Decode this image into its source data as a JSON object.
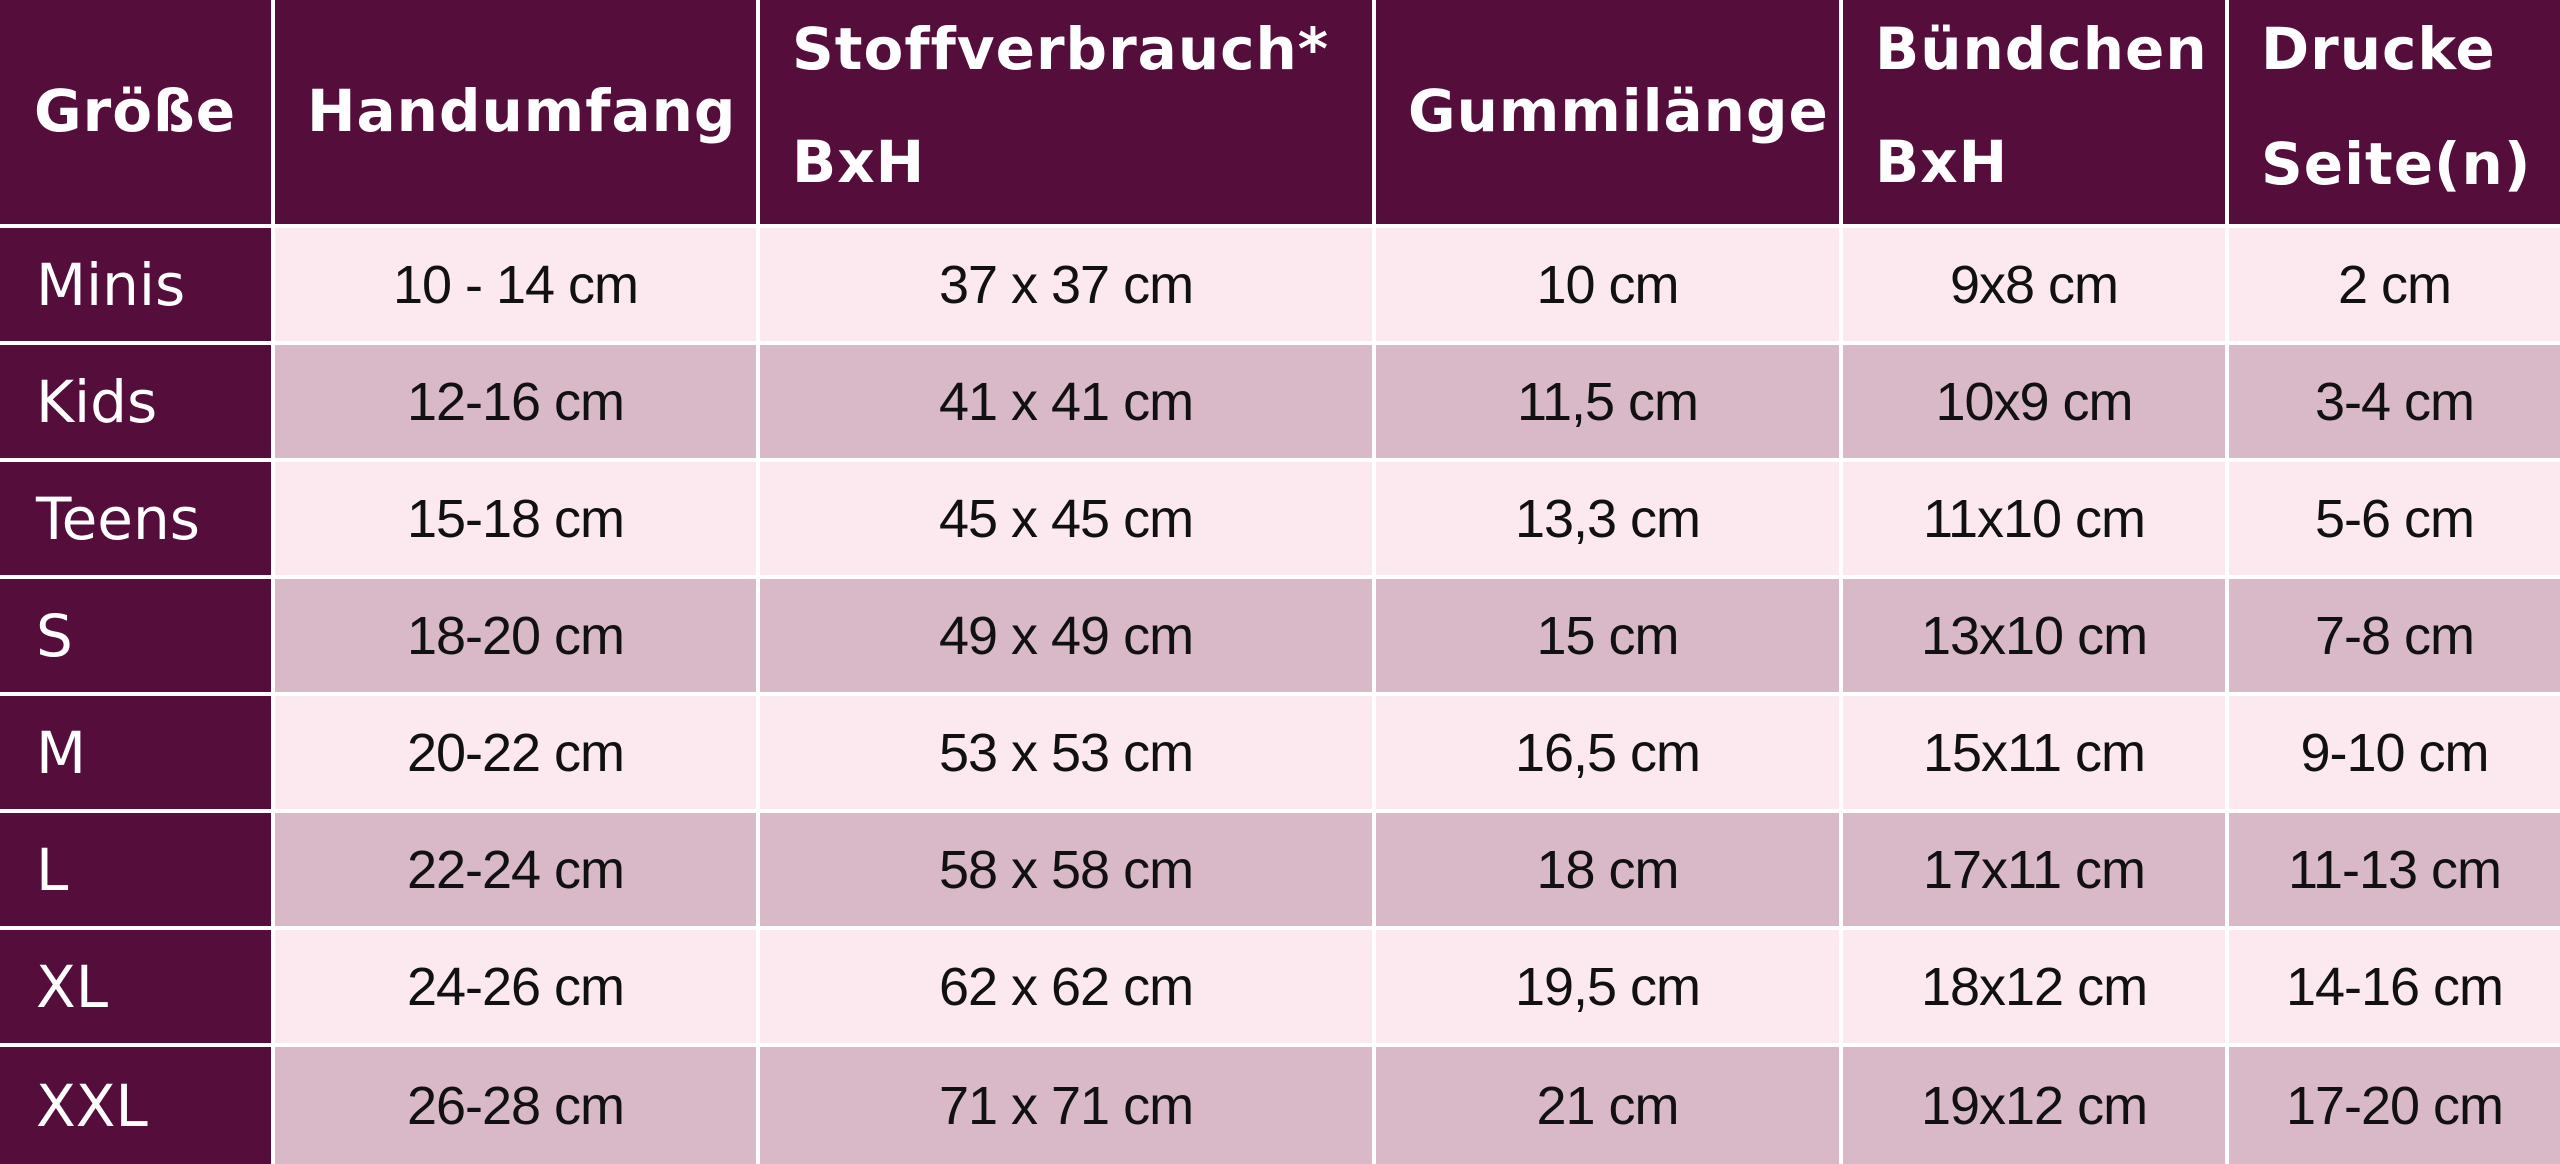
{
  "table": {
    "headers": [
      [
        "Größe"
      ],
      [
        "Handumfang"
      ],
      [
        "Stoffverbrauch*",
        "BxH"
      ],
      [
        "Gummilänge"
      ],
      [
        "Bündchen",
        "BxH"
      ],
      [
        "Drucke",
        "Seite(n)"
      ]
    ],
    "rows": [
      [
        "Minis",
        "10 - 14 cm",
        "37 x 37 cm",
        "10 cm",
        "9x8 cm",
        "2 cm"
      ],
      [
        "Kids",
        "12-16 cm",
        "41 x 41  cm",
        "11,5 cm",
        "10x9 cm",
        "3-4 cm"
      ],
      [
        "Teens",
        "15-18 cm",
        "45 x 45 cm",
        "13,3 cm",
        "11x10 cm",
        "5-6 cm"
      ],
      [
        "S",
        "18-20 cm",
        "49 x 49 cm",
        "15 cm",
        "13x10 cm",
        "7-8 cm"
      ],
      [
        "M",
        "20-22 cm",
        "53 x 53 cm",
        "16,5 cm",
        "15x11 cm",
        "9-10 cm"
      ],
      [
        "L",
        "22-24 cm",
        "58 x 58 cm",
        "18 cm",
        "17x11 cm",
        "11-13 cm"
      ],
      [
        "XL",
        "24-26 cm",
        "62 x 62 cm",
        "19,5 cm",
        "18x12 cm",
        "14-16 cm"
      ],
      [
        "XXL",
        "26-28 cm",
        "71 x 71 cm",
        "21 cm",
        "19x12 cm",
        "17-20 cm"
      ]
    ]
  },
  "colors": {
    "header_bg": "#550d3c",
    "row_light": "#fbe9ef",
    "row_dark": "#d9b8c8"
  }
}
